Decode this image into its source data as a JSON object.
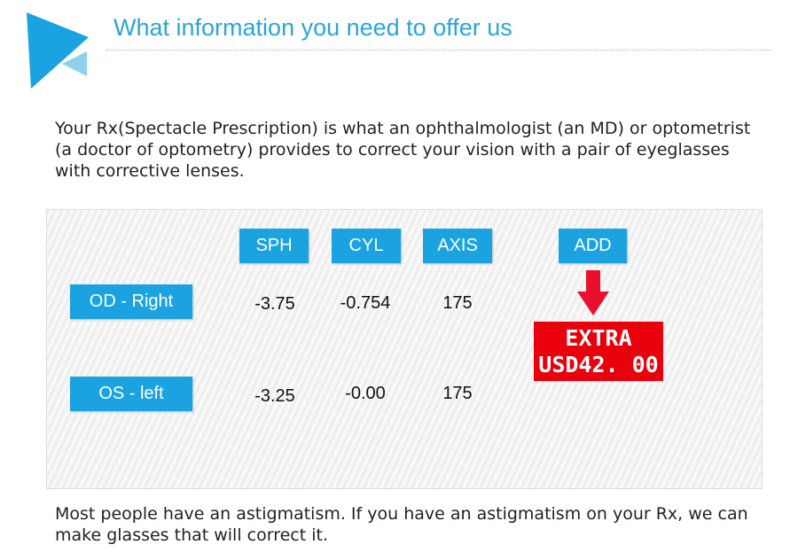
{
  "header": {
    "title": "What information you need to offer us"
  },
  "intro": [
    "Your Rx(Spectacle Prescription) is what an ophthalmologist (an MD) or optometrist",
    "(a doctor of optometry) provides to correct your vision with a pair of eyeglasses",
    "with corrective lenses."
  ],
  "table": {
    "columns": [
      "SPH",
      "CYL",
      "AXIS",
      "ADD"
    ],
    "rows": [
      {
        "label": "OD - Right",
        "values": [
          "-3.75",
          "-0.754",
          "175"
        ]
      },
      {
        "label": "OS - left",
        "values": [
          "-3.25",
          "-0.00",
          "175"
        ]
      }
    ],
    "add_note": [
      "EXTRA",
      "USD42. 00"
    ]
  },
  "footer": [
    "Most people have an astigmatism. If you have an astigmatism on your Rx, we can",
    "make glasses that will correct it."
  ]
}
